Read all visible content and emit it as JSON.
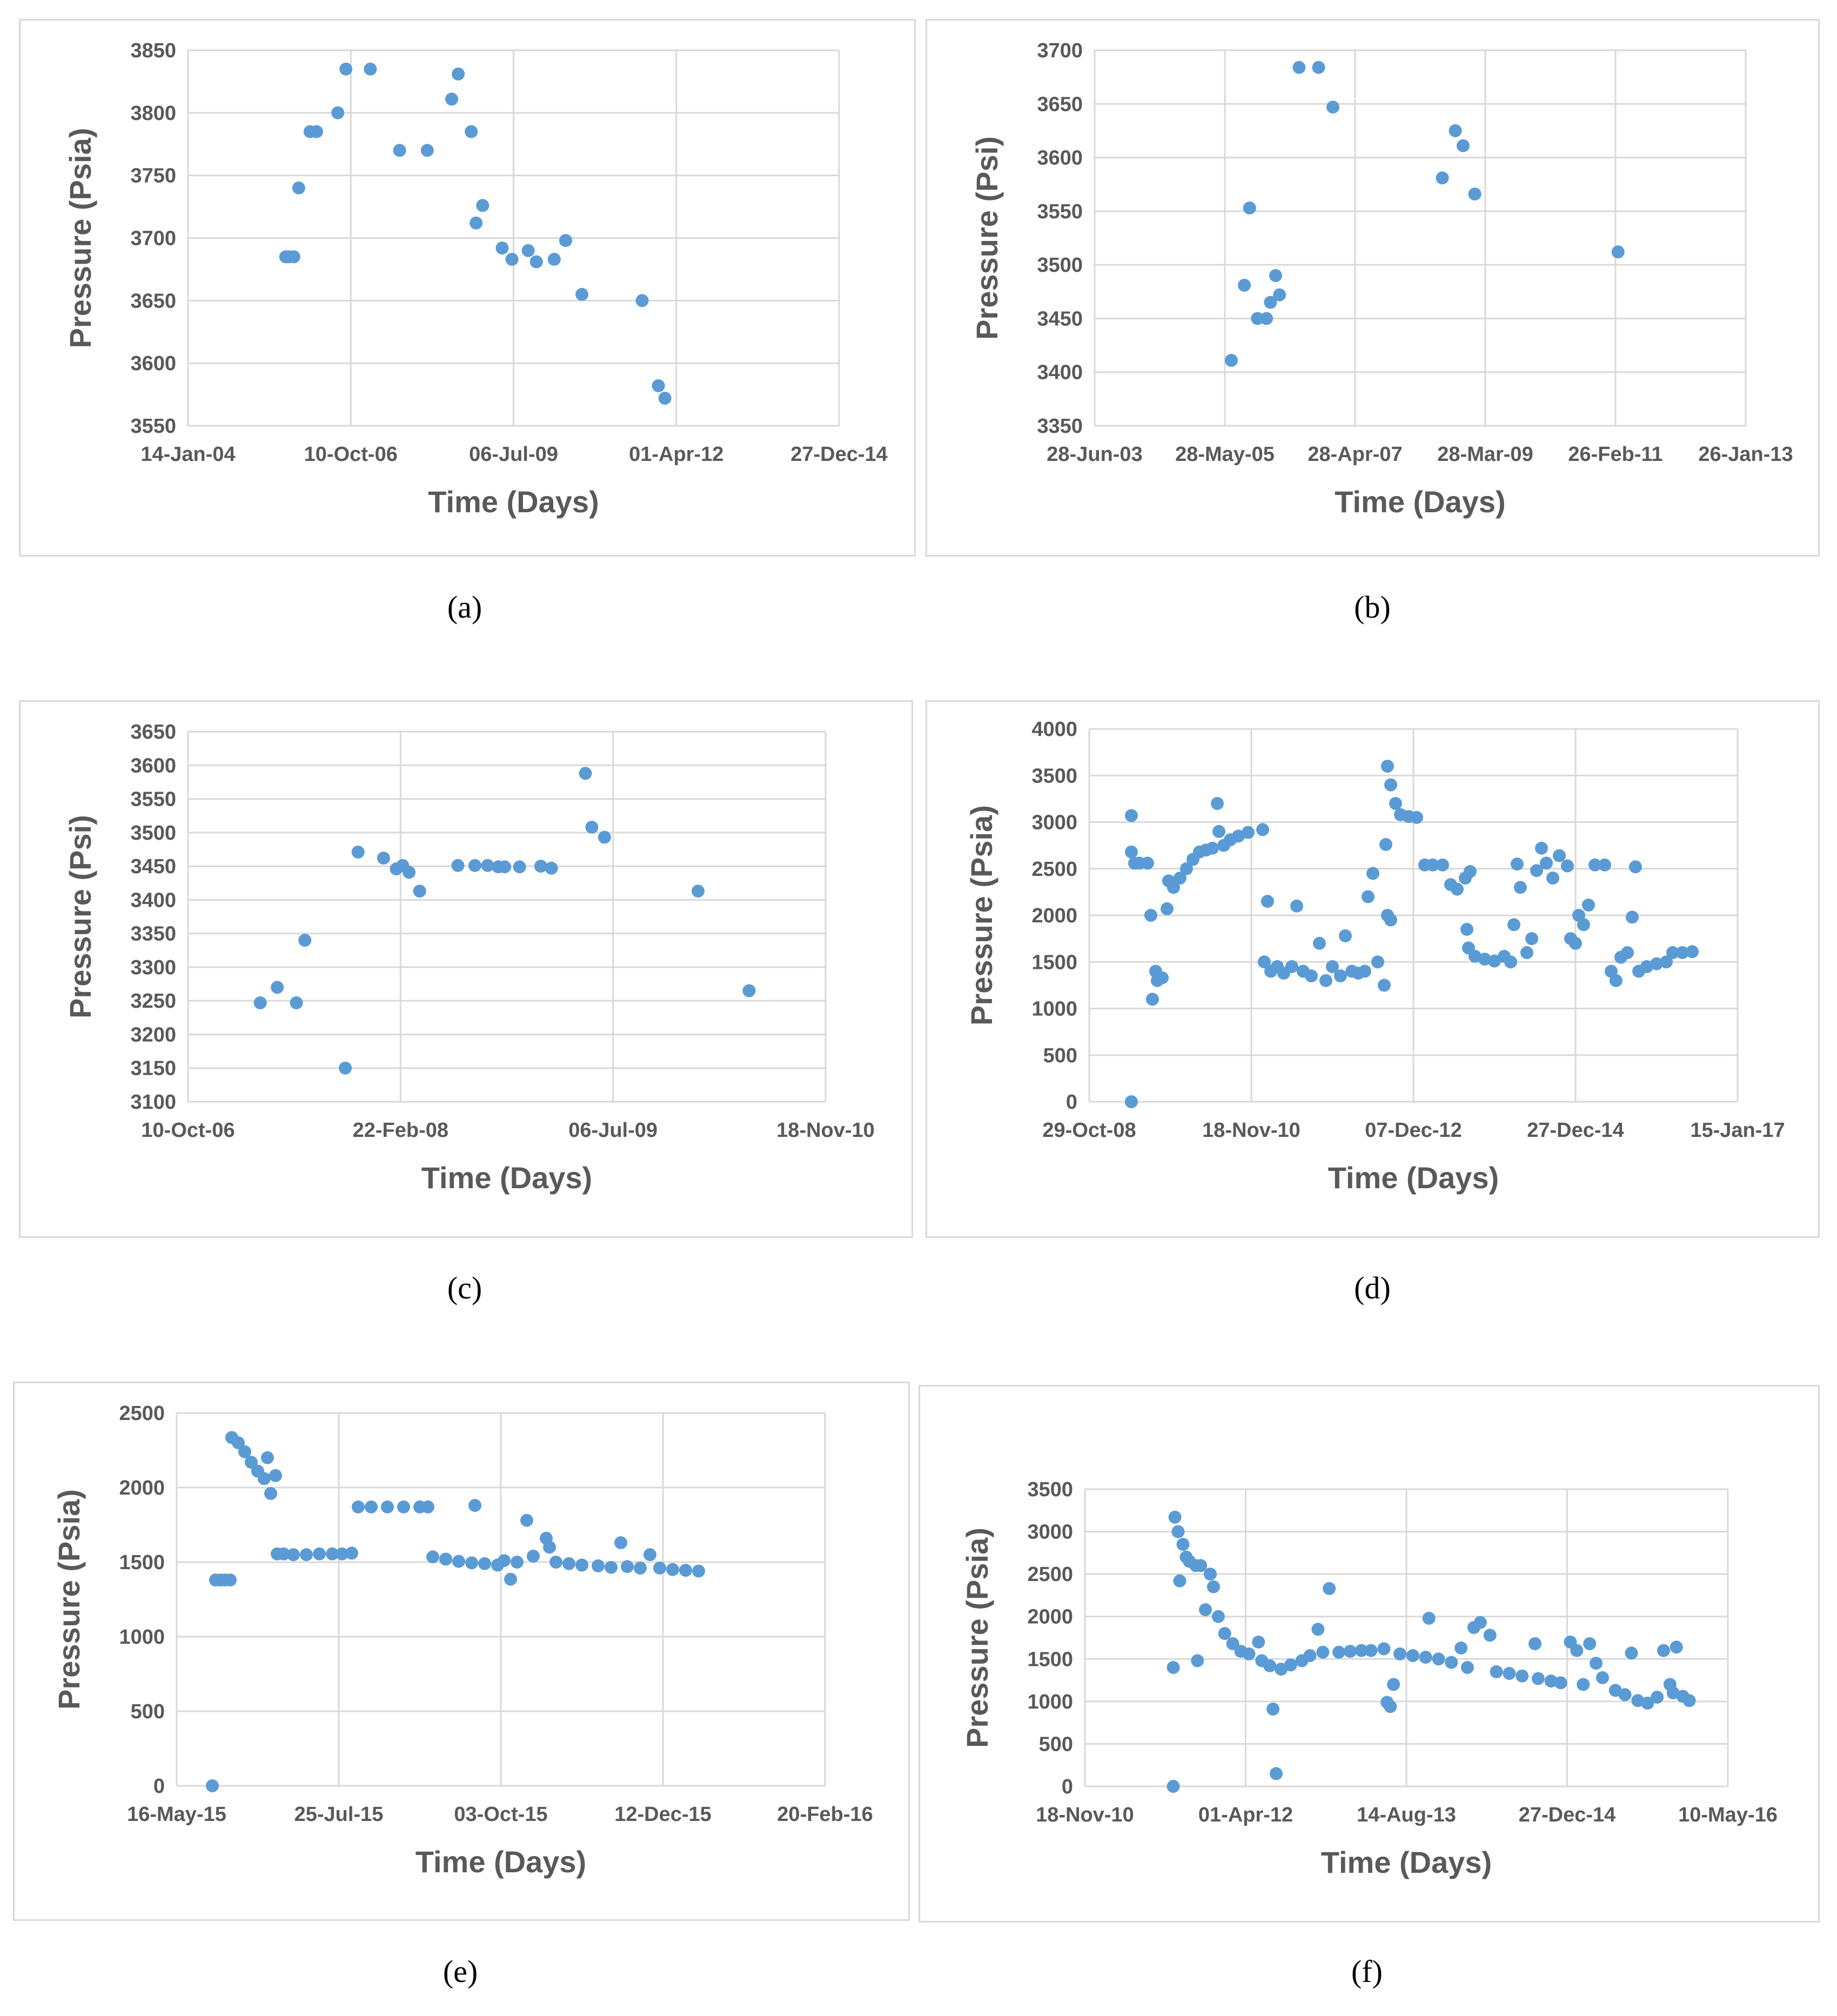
{
  "figure": {
    "captions": [
      "(a)",
      "(b)",
      "(c)",
      "(d)",
      "(e)",
      "(f)"
    ],
    "colors": {
      "marker": "#5b9bd5",
      "grid": "#d9d9d9",
      "text": "#595959"
    }
  },
  "chart_data": [
    {
      "id": "a",
      "type": "scatter",
      "caption": "(a)",
      "xlabel": "Time (Days)",
      "ylabel": "Pressure (Psia)",
      "xticks": [
        "14-Jan-04",
        "10-Oct-06",
        "06-Jul-09",
        "01-Apr-12",
        "27-Dec-14"
      ],
      "yticks": [
        "3550",
        "3600",
        "3650",
        "3700",
        "3750",
        "3800",
        "3850"
      ],
      "xlim": [
        0,
        4
      ],
      "ylim": [
        3550,
        3850
      ],
      "points": [
        [
          0.6,
          3685
        ],
        [
          0.62,
          3685
        ],
        [
          0.65,
          3685
        ],
        [
          0.68,
          3740
        ],
        [
          0.75,
          3785
        ],
        [
          0.79,
          3785
        ],
        [
          0.92,
          3800
        ],
        [
          0.97,
          3835
        ],
        [
          1.12,
          3835
        ],
        [
          1.3,
          3770
        ],
        [
          1.47,
          3770
        ],
        [
          1.62,
          3811
        ],
        [
          1.66,
          3831
        ],
        [
          1.74,
          3785
        ],
        [
          1.77,
          3712
        ],
        [
          1.81,
          3726
        ],
        [
          1.93,
          3692
        ],
        [
          1.99,
          3683
        ],
        [
          2.09,
          3690
        ],
        [
          2.14,
          3681
        ],
        [
          2.25,
          3683
        ],
        [
          2.32,
          3698
        ],
        [
          2.42,
          3655
        ],
        [
          2.79,
          3650
        ],
        [
          2.89,
          3582
        ],
        [
          2.93,
          3572
        ]
      ]
    },
    {
      "id": "b",
      "type": "scatter",
      "caption": "(b)",
      "xlabel": "Time (Days)",
      "ylabel": "Pressure (Psi)",
      "xticks": [
        "28-Jun-03",
        "28-May-05",
        "28-Apr-07",
        "28-Mar-09",
        "26-Feb-11",
        "26-Jan-13"
      ],
      "yticks": [
        "3350",
        "3400",
        "3450",
        "3500",
        "3550",
        "3600",
        "3650",
        "3700"
      ],
      "xlim": [
        0,
        5
      ],
      "ylim": [
        3350,
        3700
      ],
      "points": [
        [
          1.05,
          3411
        ],
        [
          1.15,
          3481
        ],
        [
          1.19,
          3553
        ],
        [
          1.25,
          3450
        ],
        [
          1.32,
          3450
        ],
        [
          1.35,
          3465
        ],
        [
          1.39,
          3490
        ],
        [
          1.42,
          3472
        ],
        [
          1.57,
          3684
        ],
        [
          1.72,
          3684
        ],
        [
          1.83,
          3647
        ],
        [
          2.67,
          3581
        ],
        [
          2.77,
          3625
        ],
        [
          2.83,
          3611
        ],
        [
          2.92,
          3566
        ],
        [
          4.02,
          3512
        ]
      ]
    },
    {
      "id": "c",
      "type": "scatter",
      "caption": "(c)",
      "xlabel": "Time (Days)",
      "ylabel": "Pressure (Psi)",
      "xticks": [
        "10-Oct-06",
        "22-Feb-08",
        "06-Jul-09",
        "18-Nov-10"
      ],
      "yticks": [
        "3100",
        "3150",
        "3200",
        "3250",
        "3300",
        "3350",
        "3400",
        "3450",
        "3500",
        "3550",
        "3600",
        "3650"
      ],
      "xlim": [
        0,
        3
      ],
      "ylim": [
        3100,
        3650
      ],
      "points": [
        [
          0.34,
          3247
        ],
        [
          0.42,
          3270
        ],
        [
          0.51,
          3247
        ],
        [
          0.55,
          3340
        ],
        [
          0.74,
          3150
        ],
        [
          0.8,
          3471
        ],
        [
          0.92,
          3462
        ],
        [
          0.98,
          3446
        ],
        [
          1.01,
          3451
        ],
        [
          1.04,
          3441
        ],
        [
          1.09,
          3413
        ],
        [
          1.27,
          3451
        ],
        [
          1.35,
          3451
        ],
        [
          1.41,
          3451
        ],
        [
          1.46,
          3449
        ],
        [
          1.49,
          3449
        ],
        [
          1.56,
          3449
        ],
        [
          1.66,
          3450
        ],
        [
          1.71,
          3447
        ],
        [
          1.87,
          3588
        ],
        [
          1.9,
          3508
        ],
        [
          1.96,
          3493
        ],
        [
          2.4,
          3413
        ],
        [
          2.64,
          3265
        ]
      ]
    },
    {
      "id": "d",
      "type": "scatter",
      "caption": "(d)",
      "xlabel": "Time (Days)",
      "ylabel": "Pressure (Psia)",
      "xticks": [
        "29-Oct-08",
        "18-Nov-10",
        "07-Dec-12",
        "27-Dec-14",
        "15-Jan-17"
      ],
      "yticks": [
        "0",
        "500",
        "1000",
        "1500",
        "2000",
        "2500",
        "3000",
        "3500",
        "4000"
      ],
      "xlim": [
        0,
        4
      ],
      "ylim": [
        0,
        4000
      ],
      "points": [
        [
          0.26,
          0
        ],
        [
          0.26,
          3070
        ],
        [
          0.26,
          2680
        ],
        [
          0.28,
          2560
        ],
        [
          0.31,
          2560
        ],
        [
          0.36,
          2560
        ],
        [
          0.38,
          2000
        ],
        [
          0.39,
          1100
        ],
        [
          0.41,
          1400
        ],
        [
          0.42,
          1300
        ],
        [
          0.45,
          1330
        ],
        [
          0.48,
          2070
        ],
        [
          0.49,
          2370
        ],
        [
          0.52,
          2300
        ],
        [
          0.56,
          2400
        ],
        [
          0.6,
          2500
        ],
        [
          0.64,
          2600
        ],
        [
          0.68,
          2680
        ],
        [
          0.72,
          2700
        ],
        [
          0.76,
          2720
        ],
        [
          0.79,
          3200
        ],
        [
          0.8,
          2900
        ],
        [
          0.83,
          2750
        ],
        [
          0.87,
          2810
        ],
        [
          0.92,
          2850
        ],
        [
          0.98,
          2890
        ],
        [
          1.07,
          2920
        ],
        [
          1.08,
          1500
        ],
        [
          1.1,
          2150
        ],
        [
          1.12,
          1400
        ],
        [
          1.16,
          1450
        ],
        [
          1.2,
          1380
        ],
        [
          1.25,
          1450
        ],
        [
          1.28,
          2100
        ],
        [
          1.32,
          1400
        ],
        [
          1.37,
          1350
        ],
        [
          1.42,
          1700
        ],
        [
          1.46,
          1300
        ],
        [
          1.5,
          1450
        ],
        [
          1.55,
          1350
        ],
        [
          1.58,
          1780
        ],
        [
          1.62,
          1400
        ],
        [
          1.66,
          1380
        ],
        [
          1.7,
          1400
        ],
        [
          1.72,
          2200
        ],
        [
          1.75,
          2450
        ],
        [
          1.78,
          1500
        ],
        [
          1.82,
          1250
        ],
        [
          1.84,
          2000
        ],
        [
          1.86,
          1950
        ],
        [
          1.83,
          2760
        ],
        [
          1.84,
          3600
        ],
        [
          1.86,
          3400
        ],
        [
          1.89,
          3200
        ],
        [
          1.92,
          3080
        ],
        [
          1.97,
          3060
        ],
        [
          2.02,
          3050
        ],
        [
          2.07,
          2540
        ],
        [
          2.12,
          2540
        ],
        [
          2.18,
          2540
        ],
        [
          2.23,
          2330
        ],
        [
          2.27,
          2280
        ],
        [
          2.32,
          2400
        ],
        [
          2.35,
          2470
        ],
        [
          2.33,
          1850
        ],
        [
          2.34,
          1650
        ],
        [
          2.38,
          1560
        ],
        [
          2.44,
          1530
        ],
        [
          2.5,
          1510
        ],
        [
          2.56,
          1560
        ],
        [
          2.6,
          1500
        ],
        [
          2.62,
          1900
        ],
        [
          2.64,
          2550
        ],
        [
          2.66,
          2300
        ],
        [
          2.7,
          1600
        ],
        [
          2.73,
          1750
        ],
        [
          2.76,
          2480
        ],
        [
          2.79,
          2720
        ],
        [
          2.82,
          2560
        ],
        [
          2.86,
          2400
        ],
        [
          2.9,
          2640
        ],
        [
          2.95,
          2530
        ],
        [
          2.97,
          1750
        ],
        [
          3.0,
          1700
        ],
        [
          3.02,
          2000
        ],
        [
          3.05,
          1900
        ],
        [
          3.08,
          2110
        ],
        [
          3.12,
          2540
        ],
        [
          3.18,
          2540
        ],
        [
          3.22,
          1400
        ],
        [
          3.25,
          1300
        ],
        [
          3.28,
          1550
        ],
        [
          3.32,
          1600
        ],
        [
          3.35,
          1980
        ],
        [
          3.37,
          2520
        ],
        [
          3.39,
          1400
        ],
        [
          3.44,
          1450
        ],
        [
          3.5,
          1480
        ],
        [
          3.56,
          1500
        ],
        [
          3.6,
          1600
        ],
        [
          3.66,
          1600
        ],
        [
          3.72,
          1610
        ]
      ]
    },
    {
      "id": "e",
      "type": "scatter",
      "caption": "(e)",
      "xlabel": "Time (Days)",
      "ylabel": "Pressure (Psia)",
      "xticks": [
        "16-May-15",
        "25-Jul-15",
        "03-Oct-15",
        "12-Dec-15",
        "20-Feb-16"
      ],
      "yticks": [
        "0",
        "500",
        "1000",
        "1500",
        "2000",
        "2500"
      ],
      "xlim": [
        0,
        4
      ],
      "ylim": [
        0,
        2500
      ],
      "points": [
        [
          0.22,
          0
        ],
        [
          0.24,
          1380
        ],
        [
          0.27,
          1380
        ],
        [
          0.3,
          1380
        ],
        [
          0.33,
          1380
        ],
        [
          0.34,
          2335
        ],
        [
          0.38,
          2300
        ],
        [
          0.42,
          2240
        ],
        [
          0.46,
          2170
        ],
        [
          0.5,
          2110
        ],
        [
          0.54,
          2060
        ],
        [
          0.56,
          2200
        ],
        [
          0.58,
          1960
        ],
        [
          0.61,
          2080
        ],
        [
          0.62,
          1555
        ],
        [
          0.66,
          1555
        ],
        [
          0.72,
          1550
        ],
        [
          0.8,
          1550
        ],
        [
          0.88,
          1555
        ],
        [
          0.96,
          1555
        ],
        [
          1.02,
          1555
        ],
        [
          1.08,
          1560
        ],
        [
          1.12,
          1870
        ],
        [
          1.2,
          1870
        ],
        [
          1.3,
          1870
        ],
        [
          1.4,
          1870
        ],
        [
          1.5,
          1870
        ],
        [
          1.55,
          1870
        ],
        [
          1.58,
          1535
        ],
        [
          1.66,
          1520
        ],
        [
          1.74,
          1505
        ],
        [
          1.82,
          1495
        ],
        [
          1.84,
          1880
        ],
        [
          1.9,
          1490
        ],
        [
          1.98,
          1480
        ],
        [
          2.02,
          1510
        ],
        [
          2.06,
          1385
        ],
        [
          2.1,
          1500
        ],
        [
          2.16,
          1780
        ],
        [
          2.2,
          1540
        ],
        [
          2.28,
          1660
        ],
        [
          2.3,
          1600
        ],
        [
          2.34,
          1500
        ],
        [
          2.42,
          1490
        ],
        [
          2.5,
          1480
        ],
        [
          2.6,
          1475
        ],
        [
          2.68,
          1465
        ],
        [
          2.74,
          1630
        ],
        [
          2.78,
          1470
        ],
        [
          2.86,
          1460
        ],
        [
          2.92,
          1550
        ],
        [
          2.98,
          1460
        ],
        [
          3.06,
          1450
        ],
        [
          3.14,
          1445
        ],
        [
          3.22,
          1440
        ]
      ]
    },
    {
      "id": "f",
      "type": "scatter",
      "caption": "(f)",
      "xlabel": "Time (Days)",
      "ylabel": "Pressure (Psia)",
      "xticks": [
        "18-Nov-10",
        "01-Apr-12",
        "14-Aug-13",
        "27-Dec-14",
        "10-May-16"
      ],
      "yticks": [
        "0",
        "500",
        "1000",
        "1500",
        "2000",
        "2500",
        "3000",
        "3500"
      ],
      "xlim": [
        0,
        4
      ],
      "ylim": [
        0,
        3500
      ],
      "points": [
        [
          0.55,
          0
        ],
        [
          0.55,
          1400
        ],
        [
          0.56,
          3170
        ],
        [
          0.58,
          3000
        ],
        [
          0.59,
          2420
        ],
        [
          0.61,
          2850
        ],
        [
          0.63,
          2700
        ],
        [
          0.65,
          2650
        ],
        [
          0.69,
          2600
        ],
        [
          0.7,
          1480
        ],
        [
          0.72,
          2600
        ],
        [
          0.75,
          2080
        ],
        [
          0.78,
          2500
        ],
        [
          0.8,
          2350
        ],
        [
          0.83,
          2000
        ],
        [
          0.87,
          1800
        ],
        [
          0.92,
          1680
        ],
        [
          0.97,
          1590
        ],
        [
          1.02,
          1560
        ],
        [
          1.08,
          1700
        ],
        [
          1.1,
          1480
        ],
        [
          1.15,
          1420
        ],
        [
          1.17,
          910
        ],
        [
          1.19,
          150
        ],
        [
          1.22,
          1380
        ],
        [
          1.28,
          1430
        ],
        [
          1.35,
          1480
        ],
        [
          1.4,
          1540
        ],
        [
          1.45,
          1850
        ],
        [
          1.48,
          1580
        ],
        [
          1.52,
          2330
        ],
        [
          1.58,
          1580
        ],
        [
          1.65,
          1590
        ],
        [
          1.72,
          1600
        ],
        [
          1.78,
          1600
        ],
        [
          1.86,
          1620
        ],
        [
          1.88,
          990
        ],
        [
          1.9,
          940
        ],
        [
          1.92,
          1200
        ],
        [
          1.96,
          1560
        ],
        [
          2.04,
          1540
        ],
        [
          2.12,
          1520
        ],
        [
          2.14,
          1980
        ],
        [
          2.2,
          1500
        ],
        [
          2.28,
          1460
        ],
        [
          2.34,
          1630
        ],
        [
          2.38,
          1400
        ],
        [
          2.42,
          1870
        ],
        [
          2.46,
          1930
        ],
        [
          2.52,
          1780
        ],
        [
          2.56,
          1350
        ],
        [
          2.64,
          1330
        ],
        [
          2.72,
          1300
        ],
        [
          2.8,
          1680
        ],
        [
          2.82,
          1270
        ],
        [
          2.9,
          1240
        ],
        [
          2.96,
          1220
        ],
        [
          3.02,
          1700
        ],
        [
          3.06,
          1600
        ],
        [
          3.1,
          1200
        ],
        [
          3.14,
          1680
        ],
        [
          3.18,
          1450
        ],
        [
          3.22,
          1280
        ],
        [
          3.3,
          1130
        ],
        [
          3.36,
          1080
        ],
        [
          3.4,
          1570
        ],
        [
          3.44,
          1010
        ],
        [
          3.5,
          980
        ],
        [
          3.56,
          1050
        ],
        [
          3.6,
          1600
        ],
        [
          3.64,
          1200
        ],
        [
          3.66,
          1100
        ],
        [
          3.68,
          1640
        ],
        [
          3.72,
          1060
        ],
        [
          3.76,
          1010
        ]
      ]
    }
  ]
}
